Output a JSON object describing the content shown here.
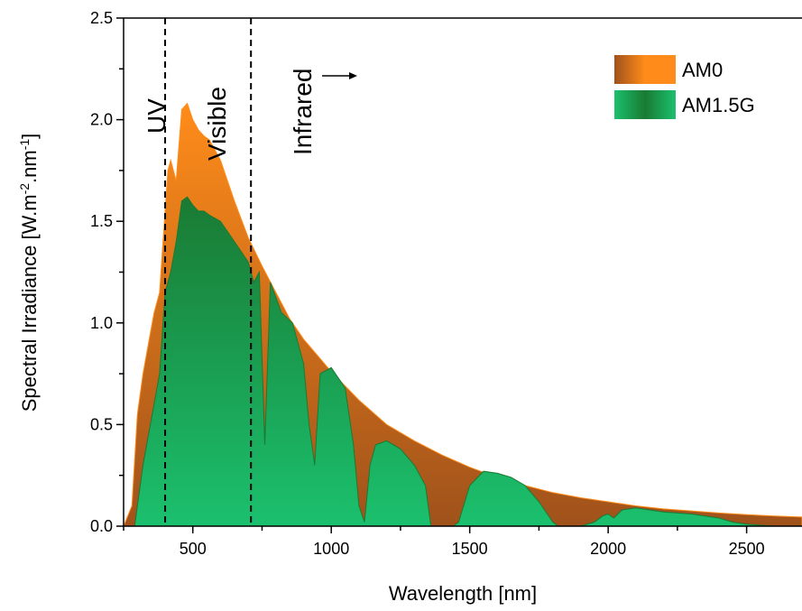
{
  "chart_data": {
    "type": "area",
    "xlabel": "Wavelength [nm]",
    "ylabel_parts": [
      "Spectral Irradiance [W.m",
      "-2",
      ".nm",
      "-1",
      "]"
    ],
    "xlim": [
      250,
      2700
    ],
    "ylim": [
      0,
      2.5
    ],
    "xticks": [
      500,
      1000,
      1500,
      2000,
      2500
    ],
    "yticks": [
      0.0,
      0.5,
      1.0,
      1.5,
      2.0,
      2.5
    ],
    "ytick_labels": [
      "0.0",
      "0.5",
      "1.0",
      "1.5",
      "2.0",
      "2.5"
    ],
    "legend_position": "top-right",
    "regions": [
      {
        "label": "UV",
        "boundary_nm": 400
      },
      {
        "label": "Visible",
        "boundary_nm": 710
      },
      {
        "label": "Infrared"
      }
    ],
    "series": [
      {
        "name": "AM0",
        "color_light": "#ff8c1a",
        "color_dark": "#a0521b",
        "x": [
          250,
          280,
          300,
          320,
          340,
          360,
          380,
          400,
          410,
          420,
          430,
          440,
          460,
          480,
          500,
          520,
          540,
          560,
          600,
          650,
          700,
          750,
          800,
          850,
          900,
          950,
          1000,
          1100,
          1200,
          1300,
          1400,
          1500,
          1600,
          1700,
          1800,
          1900,
          2000,
          2100,
          2200,
          2300,
          2400,
          2500,
          2600,
          2700
        ],
        "y": [
          0,
          0.1,
          0.55,
          0.75,
          0.9,
          1.05,
          1.15,
          1.55,
          1.75,
          1.8,
          1.75,
          1.7,
          2.05,
          2.08,
          2.0,
          1.95,
          1.92,
          1.9,
          1.8,
          1.6,
          1.42,
          1.28,
          1.15,
          1.02,
          0.92,
          0.84,
          0.76,
          0.62,
          0.5,
          0.42,
          0.35,
          0.29,
          0.24,
          0.2,
          0.165,
          0.14,
          0.12,
          0.1,
          0.085,
          0.075,
          0.065,
          0.057,
          0.05,
          0.045
        ]
      },
      {
        "name": "AM1.5G",
        "color_light": "#1bc06e",
        "color_dark": "#1a7a33",
        "x": [
          250,
          290,
          300,
          320,
          340,
          360,
          380,
          400,
          420,
          440,
          460,
          480,
          500,
          520,
          540,
          560,
          600,
          650,
          700,
          720,
          740,
          760,
          780,
          820,
          860,
          900,
          920,
          940,
          960,
          1000,
          1050,
          1080,
          1100,
          1120,
          1140,
          1160,
          1200,
          1250,
          1300,
          1340,
          1360,
          1400,
          1440,
          1460,
          1500,
          1550,
          1600,
          1650,
          1700,
          1750,
          1800,
          1820,
          1850,
          1900,
          1950,
          1980,
          2000,
          2020,
          2050,
          2100,
          2200,
          2300,
          2400,
          2450,
          2500,
          2600,
          2700
        ],
        "y": [
          0,
          0,
          0.1,
          0.3,
          0.45,
          0.6,
          0.75,
          1.15,
          1.25,
          1.4,
          1.6,
          1.62,
          1.58,
          1.55,
          1.55,
          1.53,
          1.5,
          1.4,
          1.3,
          1.2,
          1.25,
          0.4,
          1.2,
          1.05,
          1.0,
          0.8,
          0.5,
          0.3,
          0.75,
          0.78,
          0.68,
          0.4,
          0.1,
          0.02,
          0.3,
          0.4,
          0.42,
          0.38,
          0.3,
          0.2,
          0.0,
          0.0,
          0.0,
          0.02,
          0.2,
          0.27,
          0.26,
          0.24,
          0.2,
          0.12,
          0.02,
          0.0,
          0.0,
          0.0,
          0.02,
          0.05,
          0.06,
          0.04,
          0.08,
          0.09,
          0.07,
          0.06,
          0.04,
          0.02,
          0.01,
          0.0,
          0.0
        ]
      }
    ]
  }
}
